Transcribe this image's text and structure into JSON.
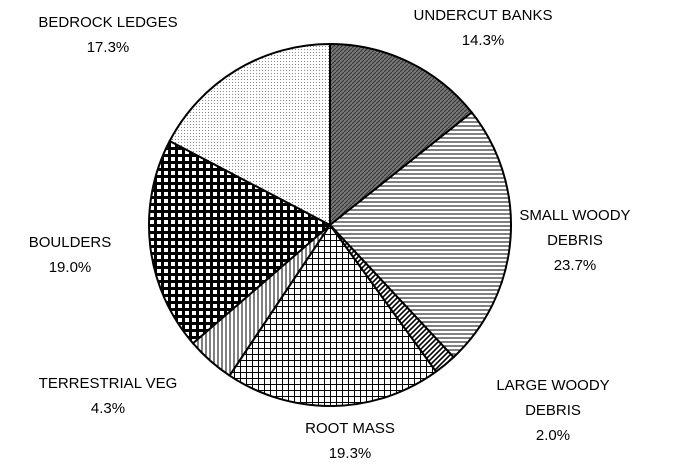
{
  "chart_data": {
    "type": "pie",
    "categories": [
      "UNDERCUT BANKS",
      "SMALL WOODY DEBRIS",
      "LARGE WOODY DEBRIS",
      "ROOT MASS",
      "TERRESTRIAL VEG",
      "BOULDERS",
      "BEDROCK LEDGES"
    ],
    "values": [
      14.3,
      23.7,
      2.0,
      19.3,
      4.3,
      19.0,
      17.3
    ],
    "value_labels": [
      "14.3%",
      "23.7%",
      "2.0%",
      "19.3%",
      "4.3%",
      "19.0%",
      "17.3%"
    ]
  }
}
